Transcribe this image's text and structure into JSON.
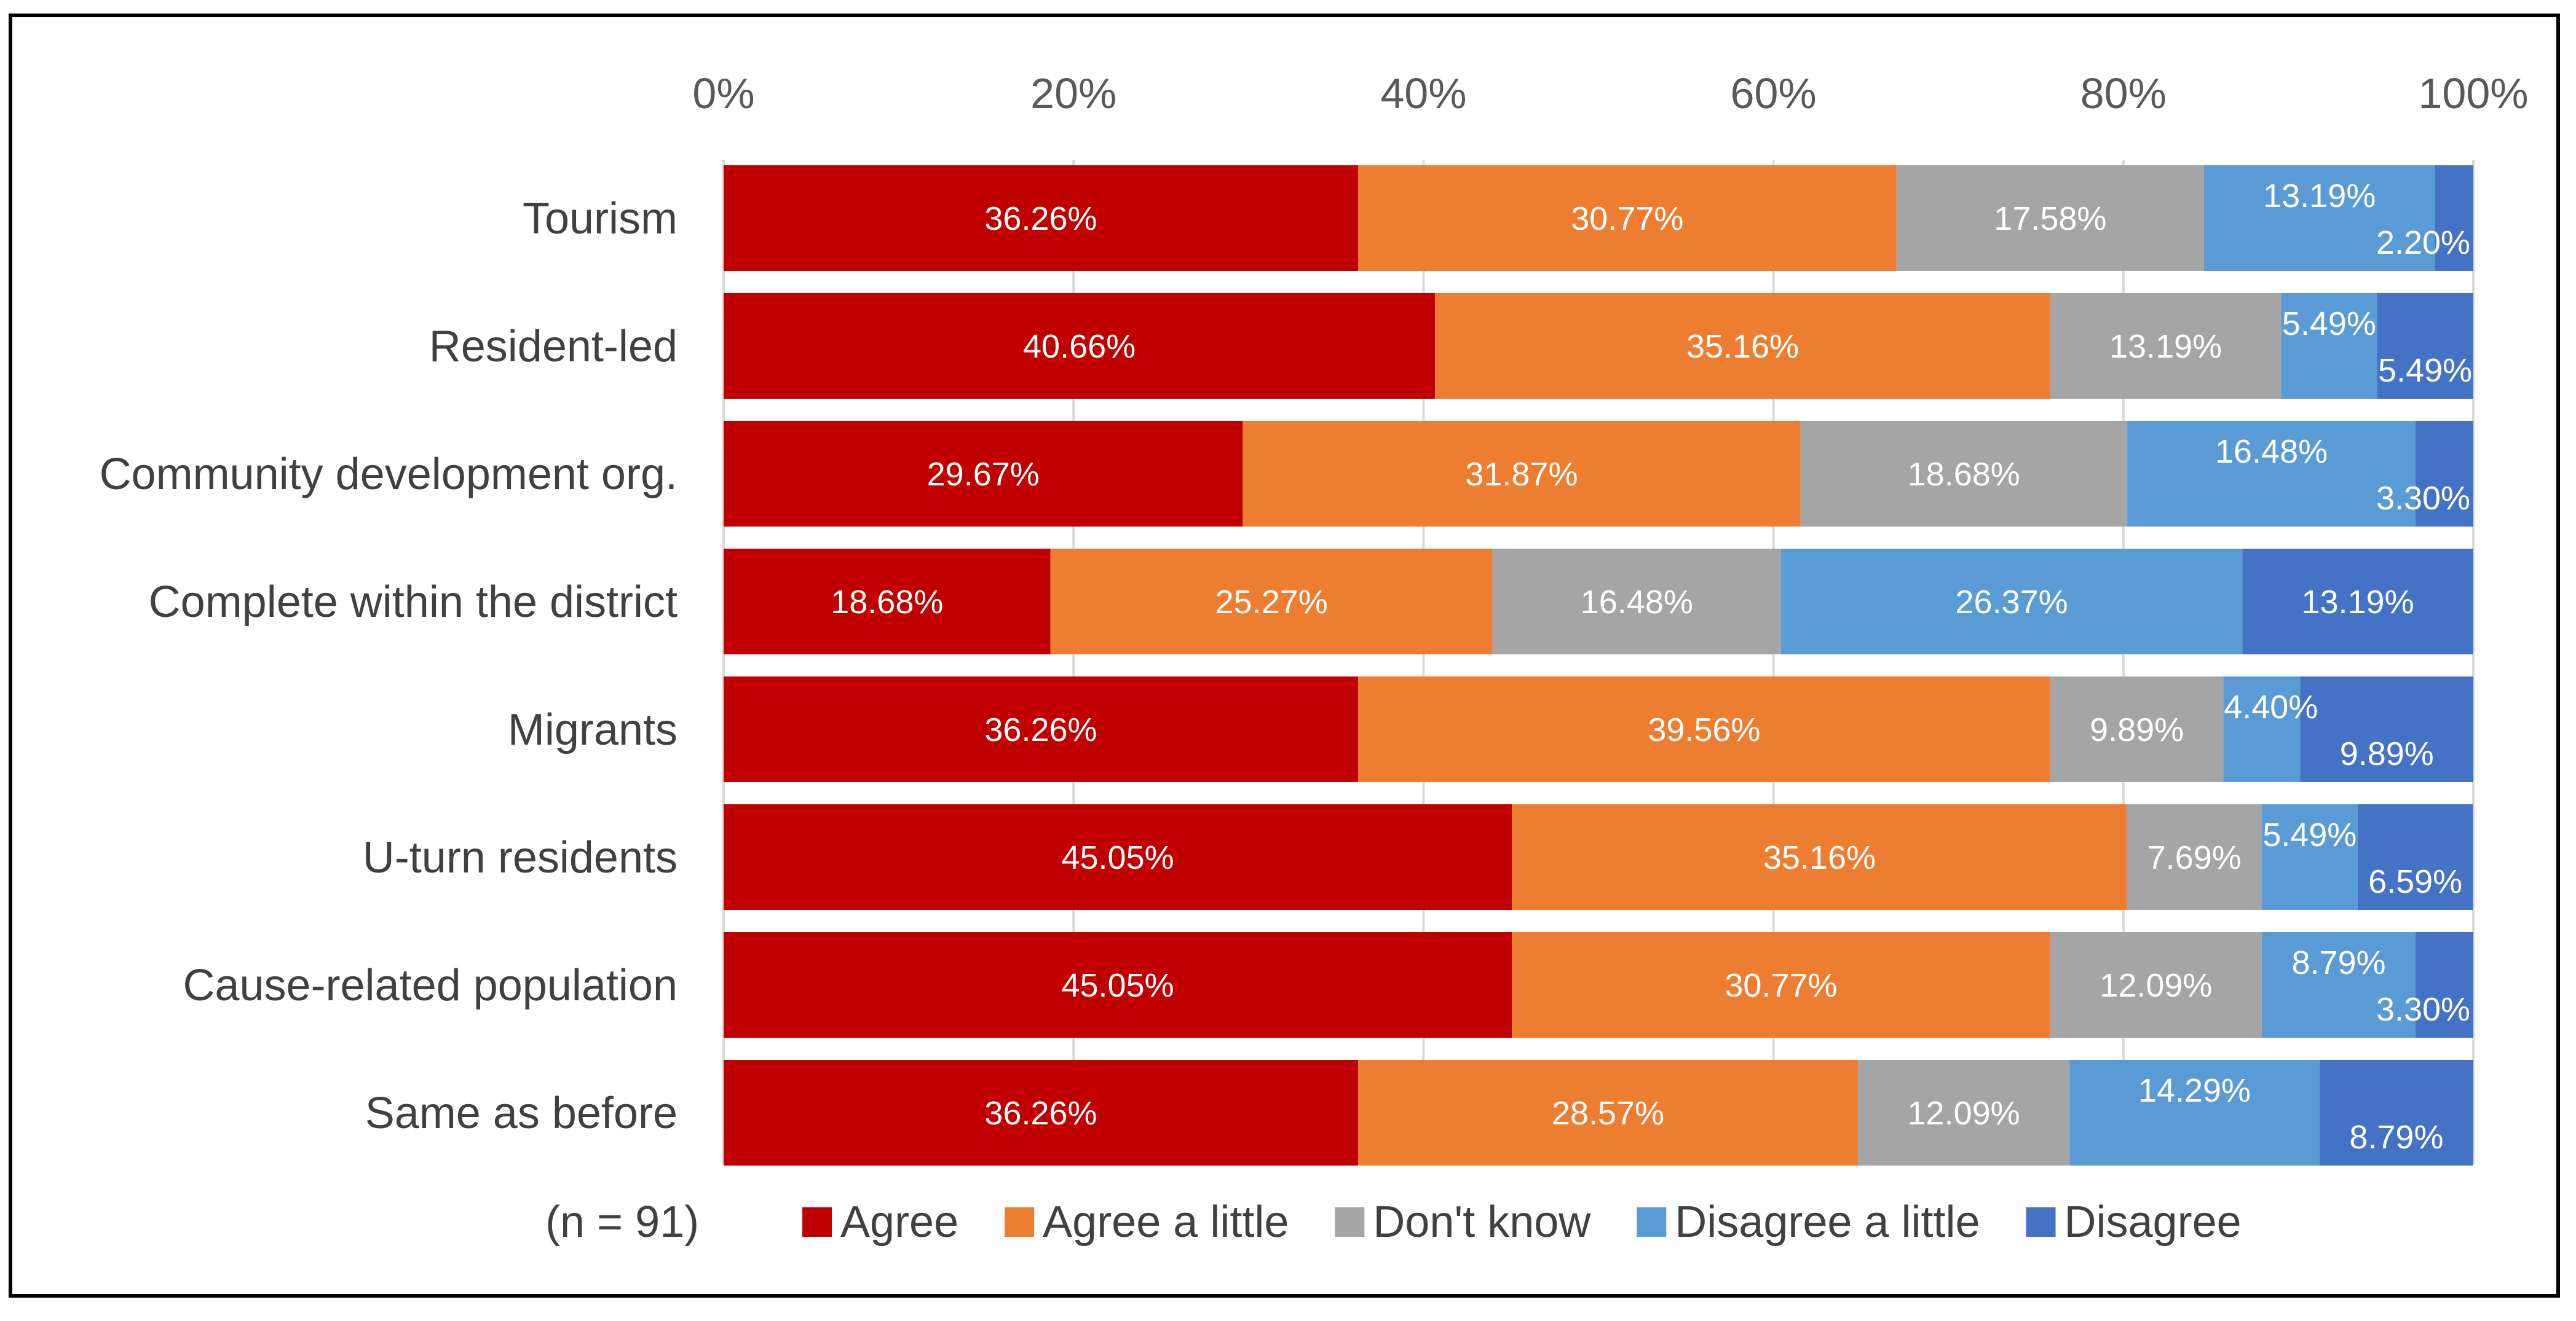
{
  "chart_data": {
    "type": "bar",
    "orientation": "horizontal-stacked-100",
    "title": "",
    "xlabel": "",
    "ylabel": "",
    "xlim": [
      0,
      100
    ],
    "xticks": [
      "0%",
      "20%",
      "40%",
      "60%",
      "80%",
      "100%"
    ],
    "categories": [
      "Tourism",
      "Resident-led",
      "Community development org.",
      "Complete within the district",
      "Migrants",
      "U-turn residents",
      "Cause-related population",
      "Same as before"
    ],
    "series": [
      {
        "name": "Agree",
        "color": "#C00000",
        "values": [
          36.26,
          40.66,
          29.67,
          18.68,
          36.26,
          45.05,
          45.05,
          36.26
        ],
        "labels": [
          "36.26%",
          "40.66%",
          "29.67%",
          "18.68%",
          "36.26%",
          "45.05%",
          "45.05%",
          "36.26%"
        ]
      },
      {
        "name": "Agree a little",
        "color": "#ED7D31",
        "values": [
          30.77,
          35.16,
          31.87,
          25.27,
          39.56,
          35.16,
          30.77,
          28.57
        ],
        "labels": [
          "30.77%",
          "35.16%",
          "31.87%",
          "25.27%",
          "39.56%",
          "35.16%",
          "30.77%",
          "28.57%"
        ]
      },
      {
        "name": "Don't know",
        "color": "#A5A5A5",
        "values": [
          17.58,
          13.19,
          18.68,
          16.48,
          9.89,
          7.69,
          12.09,
          12.09
        ],
        "labels": [
          "17.58%",
          "13.19%",
          "18.68%",
          "16.48%",
          "9.89%",
          "7.69%",
          "12.09%",
          "12.09%"
        ]
      },
      {
        "name": "Disagree a little",
        "color": "#5B9BD5",
        "values": [
          13.19,
          5.49,
          16.48,
          26.37,
          4.4,
          5.49,
          8.79,
          14.29
        ],
        "labels": [
          "13.19%",
          "5.49%",
          "16.48%",
          "26.37%",
          "4.40%",
          "5.49%",
          "8.79%",
          "14.29%"
        ]
      },
      {
        "name": "Disagree",
        "color": "#4472C4",
        "values": [
          2.2,
          5.49,
          3.3,
          13.19,
          9.89,
          6.59,
          3.3,
          8.79
        ],
        "labels": [
          "2.20%",
          "5.49%",
          "3.30%",
          "13.19%",
          "9.89%",
          "6.59%",
          "3.30%",
          "8.79%"
        ]
      }
    ],
    "legend": {
      "position": "bottom",
      "note": "(n = 91)"
    },
    "grid": true
  }
}
